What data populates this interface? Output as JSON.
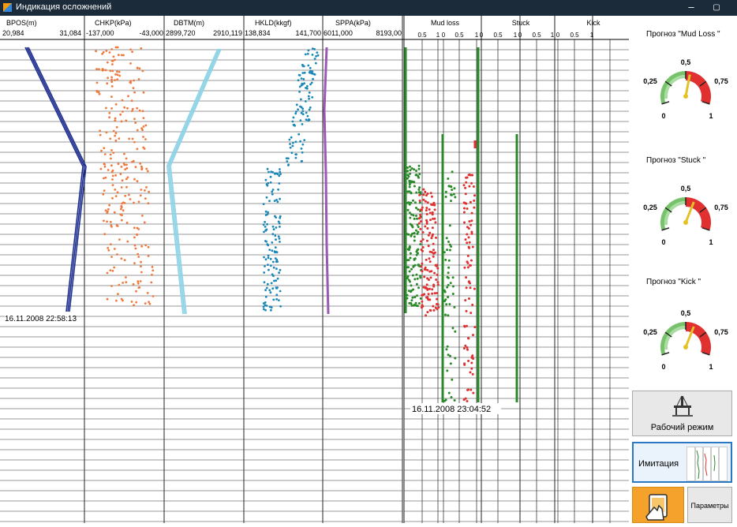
{
  "window": {
    "title": "Индикация осложнений",
    "minimize": "–",
    "restore": "▢"
  },
  "tracks": [
    {
      "name": "BPOS(m)",
      "min": "20,984",
      "max": "31,084",
      "color": "#1f2f8f"
    },
    {
      "name": "CHKP(kPa)",
      "min": "-137,000",
      "max": "-43,000",
      "color": "#f07a3e"
    },
    {
      "name": "DBTM(m)",
      "min": "2899,720",
      "max": "2910,119",
      "color": "#8fd3e6"
    },
    {
      "name": "HKLD(kkgf)",
      "min": "138,834",
      "max": "141,700",
      "color": "#1a87b9"
    },
    {
      "name": "SPPA(kPa)",
      "min": "6011,000",
      "max": "8193,00",
      "color": "#9b59b6"
    }
  ],
  "left_timestamp": "16.11.2008 22:58:13",
  "prob_tracks": [
    {
      "name": "Mud loss",
      "ticks": [
        "0.5",
        "1",
        "0",
        "0.5",
        "1"
      ]
    },
    {
      "name": "Stuck",
      "ticks": [
        "0",
        "0.5",
        "1"
      ]
    },
    {
      "name": "Kick",
      "ticks": [
        "0",
        "0.5",
        "1",
        "0",
        "0.5",
        "1"
      ]
    }
  ],
  "right_timestamp": "16.11.2008 23:04:52",
  "gauges": [
    {
      "title": "Прогноз \"Mud Loss \"",
      "value": 0.55,
      "labels": [
        "0",
        "0,25",
        "0,5",
        "0,75",
        "1"
      ]
    },
    {
      "title": "Прогноз \"Stuck \"",
      "value": 0.6,
      "labels": [
        "0",
        "0,25",
        "0,5",
        "0,75",
        "1"
      ]
    },
    {
      "title": "Прогноз \"Kick \"",
      "value": 0.6,
      "labels": [
        "0",
        "0,25",
        "0,5",
        "0,75",
        "1"
      ]
    }
  ],
  "buttons": {
    "work_mode": "Рабочий режим",
    "imitation": "Имитация",
    "parameters": "Параметры"
  },
  "icons": {
    "app": "app-logo-icon",
    "rig": "oil-rig-icon",
    "hand": "hand-tablet-icon"
  }
}
